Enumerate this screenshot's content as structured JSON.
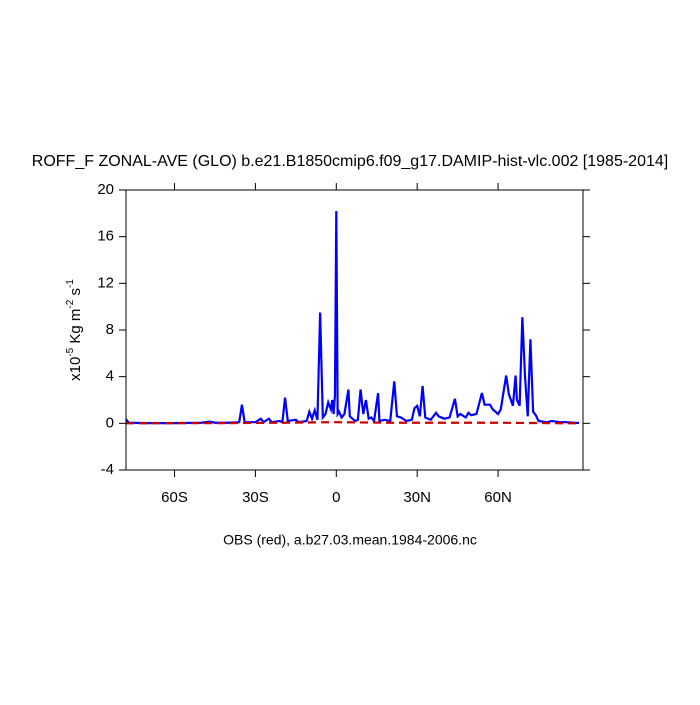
{
  "chart_data": {
    "type": "line",
    "title": "ROFF_F ZONAL-AVE (GLO) b.e21.B1850cmip6.f09_g17.DAMIP-hist-vlc.002 [1985-2014]",
    "subtitle": "OBS (red), a.b27.03.mean.1984-2006.nc",
    "ylabel": {
      "text": [
        "x10",
        " Kg m",
        " s"
      ],
      "sup": [
        "-5",
        "-2",
        "-1"
      ]
    },
    "xlim": [
      -78,
      91.5
    ],
    "xticks": [
      {
        "value": -60,
        "label": "60S"
      },
      {
        "value": -30,
        "label": "30S"
      },
      0,
      {
        "value": 30,
        "label": "30N"
      },
      {
        "value": 60,
        "label": "60N"
      }
    ],
    "ylim": [
      -4,
      20
    ],
    "yticks": [
      -4,
      0,
      4,
      8,
      12,
      16,
      20
    ],
    "series": [
      {
        "color": "#0000ff",
        "line": "solid",
        "x": [
          -78,
          -77,
          -70,
          -60,
          -50,
          -47,
          -45,
          -40,
          -36,
          -35,
          -34,
          -30,
          -28,
          -27,
          -25,
          -24,
          -21,
          -20,
          -19,
          -18,
          -15,
          -14,
          -11,
          -10,
          -9,
          -8,
          -7,
          -6,
          -5,
          -4,
          -3,
          -2,
          -1.5,
          -1,
          -0.5,
          0,
          0.5,
          1,
          2,
          3,
          4.5,
          5,
          6,
          7,
          8,
          9,
          10,
          11,
          12,
          13,
          14,
          15.5,
          16,
          18,
          20,
          21.5,
          22.5,
          24,
          26,
          28,
          29,
          30,
          31,
          32,
          33,
          35,
          37,
          38,
          40,
          42,
          44,
          45,
          46,
          48,
          49,
          50,
          52,
          54,
          55,
          57,
          58,
          60,
          61,
          63,
          64,
          65.5,
          66.5,
          67,
          68,
          69,
          70,
          71,
          72,
          73,
          74,
          75,
          78,
          80,
          83,
          85,
          88,
          90
        ],
        "values": [
          0.35,
          0.05,
          0.02,
          0.02,
          0.05,
          0.15,
          0.05,
          0.05,
          0.1,
          1.6,
          0.1,
          0.1,
          0.4,
          0.1,
          0.4,
          0.1,
          0.2,
          0.1,
          2.2,
          0.2,
          0.3,
          0.1,
          0.2,
          1.0,
          0.4,
          1.1,
          0.3,
          9.5,
          0.5,
          0.8,
          1.8,
          1.2,
          2.0,
          0.8,
          2.4,
          18.2,
          0.8,
          1.0,
          0.5,
          0.8,
          2.9,
          0.6,
          0.4,
          0.2,
          0.3,
          2.9,
          0.8,
          2.0,
          0.4,
          0.5,
          0.2,
          2.6,
          0.2,
          0.3,
          0.2,
          3.6,
          0.6,
          0.5,
          0.2,
          0.3,
          1.3,
          1.5,
          0.6,
          3.2,
          0.5,
          0.3,
          0.9,
          0.6,
          0.4,
          0.5,
          2.1,
          0.6,
          0.8,
          0.5,
          0.9,
          0.7,
          0.8,
          2.6,
          1.6,
          1.6,
          1.2,
          0.8,
          1.2,
          4.1,
          2.5,
          1.5,
          4.1,
          2.0,
          1.5,
          9.1,
          4.0,
          0.6,
          7.2,
          1.0,
          0.7,
          0.2,
          0.1,
          0.2,
          0.1,
          0.1,
          0.05,
          0.03
        ]
      },
      {
        "color": "#cc0000",
        "line": "dash",
        "x": [
          -78,
          -60,
          -40,
          -20,
          0,
          20,
          40,
          60,
          90
        ],
        "values": [
          0,
          0.02,
          0.02,
          0.05,
          0.1,
          0.05,
          0.05,
          0.05,
          0
        ]
      }
    ]
  }
}
